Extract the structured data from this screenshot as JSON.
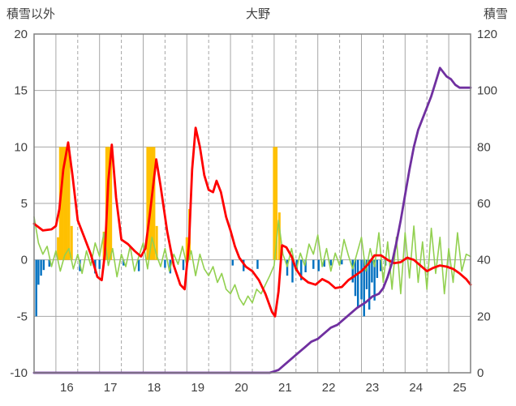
{
  "chart_data": {
    "type": "line",
    "title": "大野",
    "x_axis": {
      "min": 15.5,
      "max": 25.5,
      "tick_labels": [
        "16",
        "17",
        "18",
        "19",
        "20",
        "21",
        "22",
        "23",
        "24",
        "25"
      ],
      "tick_values": [
        16,
        17,
        18,
        19,
        20,
        21,
        22,
        23,
        24,
        25
      ],
      "solid_gridlines": [
        16,
        17,
        18,
        19,
        20,
        21,
        22,
        23,
        24,
        25
      ],
      "dashed_gridlines": [
        16.5,
        17.5,
        18.5,
        19.5,
        20.5,
        21.5,
        22.5,
        23.5,
        24.5
      ]
    },
    "left_axis": {
      "label": "積雪以外",
      "min": -10,
      "max": 20,
      "ticks": [
        20,
        15,
        10,
        5,
        0,
        -5,
        -10
      ]
    },
    "right_axis": {
      "label": "積雪",
      "min": 0,
      "max": 120,
      "ticks": [
        120,
        100,
        80,
        60,
        40,
        20,
        0
      ]
    },
    "style": {
      "grid_color": "#A6A6A6",
      "border_color": "#808080",
      "tick_text_color": "#404040",
      "background": "#FFFFFF"
    },
    "series": [
      {
        "name": "yellow-bars",
        "type": "bar",
        "axis": "left",
        "color": "#FFC000",
        "bar_width_days": 0.055,
        "points": [
          [
            16.05,
            2
          ],
          [
            16.1,
            10
          ],
          [
            16.15,
            10
          ],
          [
            16.2,
            10
          ],
          [
            16.25,
            10
          ],
          [
            16.3,
            10
          ],
          [
            16.36,
            3
          ],
          [
            17.1,
            2.5
          ],
          [
            17.16,
            10
          ],
          [
            17.21,
            10
          ],
          [
            17.26,
            10
          ],
          [
            18.1,
            10
          ],
          [
            18.15,
            10
          ],
          [
            18.2,
            10
          ],
          [
            18.25,
            10
          ],
          [
            18.31,
            3
          ],
          [
            19.0,
            2
          ],
          [
            19.06,
            4.5
          ],
          [
            21.0,
            10
          ],
          [
            21.05,
            10
          ],
          [
            21.12,
            4.2
          ]
        ]
      },
      {
        "name": "blue-bars",
        "type": "bar",
        "axis": "left",
        "color": "#0070C0",
        "bar_width_days": 0.045,
        "points": [
          [
            15.55,
            -5
          ],
          [
            15.6,
            -2.2
          ],
          [
            15.66,
            -1.4
          ],
          [
            15.72,
            -0.9
          ],
          [
            15.85,
            -0.6
          ],
          [
            16.55,
            -1.0
          ],
          [
            16.9,
            -1.2
          ],
          [
            17.0,
            -0.8
          ],
          [
            17.55,
            -0.5
          ],
          [
            17.9,
            -1.0
          ],
          [
            18.5,
            -0.7
          ],
          [
            18.62,
            -1.2
          ],
          [
            18.92,
            -0.9
          ],
          [
            20.05,
            -0.5
          ],
          [
            20.3,
            -1.0
          ],
          [
            20.62,
            -0.8
          ],
          [
            21.3,
            -1.4
          ],
          [
            21.42,
            -2.0
          ],
          [
            21.52,
            -1.0
          ],
          [
            21.62,
            -1.8
          ],
          [
            21.72,
            -1.1
          ],
          [
            21.9,
            -0.8
          ],
          [
            22.02,
            -1.0
          ],
          [
            22.15,
            -0.6
          ],
          [
            22.3,
            -0.5
          ],
          [
            22.55,
            -0.4
          ],
          [
            22.8,
            -2.0
          ],
          [
            22.86,
            -3.2
          ],
          [
            22.92,
            -4.2
          ],
          [
            23.0,
            -3.5
          ],
          [
            23.06,
            -5.0
          ],
          [
            23.12,
            -2.6
          ],
          [
            23.18,
            -4.4
          ],
          [
            23.24,
            -2.0
          ],
          [
            23.3,
            -3.6
          ],
          [
            23.36,
            -1.6
          ],
          [
            23.44,
            -1.0
          ],
          [
            23.55,
            -0.5
          ]
        ]
      },
      {
        "name": "green-line",
        "type": "line",
        "axis": "left",
        "color": "#92D050",
        "stroke_width": 1.6,
        "x_start": 15.5,
        "x_step": 0.1,
        "values": [
          3.8,
          1.5,
          0.5,
          1.2,
          -0.6,
          0.8,
          -1.0,
          0.4,
          1.0,
          -0.8,
          0.5,
          -1.2,
          0.8,
          -0.5,
          1.5,
          0.3,
          2.4,
          -0.5,
          1.0,
          -1.5,
          0.5,
          -0.6,
          1.2,
          -1.0,
          0.3,
          1.5,
          -0.8,
          2.0,
          0.5,
          -0.6,
          1.0,
          -1.0,
          0.5,
          -0.4,
          1.2,
          -0.5,
          0.8,
          -1.4,
          0.5,
          -0.8,
          -1.4,
          -0.6,
          -2.0,
          -1.2,
          -2.6,
          -3.0,
          -2.2,
          -3.4,
          -4.0,
          -3.2,
          -3.8,
          -2.6,
          -3.0,
          -2.2,
          -1.4,
          -0.5,
          3.5,
          0.5,
          -0.6,
          1.0,
          -1.0,
          0.6,
          -0.5,
          1.4,
          0.5,
          2.2,
          -0.6,
          1.0,
          -1.0,
          0.6,
          -0.5,
          1.8,
          0.4,
          -0.8,
          0.6,
          2.0,
          -1.0,
          1.0,
          -0.6,
          2.4,
          -2.0,
          1.6,
          -2.6,
          2.0,
          -3.0,
          2.4,
          -1.6,
          3.0,
          -2.0,
          1.6,
          -2.6,
          2.8,
          -1.2,
          2.0,
          -3.0,
          1.0,
          -2.0,
          2.4,
          -1.0,
          0.5,
          0.3
        ]
      },
      {
        "name": "red-line",
        "type": "line",
        "axis": "left",
        "color": "#FF0000",
        "stroke_width": 2.8,
        "points": [
          [
            15.5,
            3.2
          ],
          [
            15.7,
            2.6
          ],
          [
            15.9,
            2.7
          ],
          [
            16.0,
            3.0
          ],
          [
            16.08,
            4.5
          ],
          [
            16.17,
            8.0
          ],
          [
            16.28,
            10.4
          ],
          [
            16.38,
            7.5
          ],
          [
            16.5,
            3.5
          ],
          [
            16.65,
            2.0
          ],
          [
            16.8,
            0.5
          ],
          [
            16.95,
            -1.5
          ],
          [
            17.05,
            -1.8
          ],
          [
            17.12,
            0.5
          ],
          [
            17.2,
            7.0
          ],
          [
            17.28,
            10.2
          ],
          [
            17.38,
            5.5
          ],
          [
            17.5,
            1.8
          ],
          [
            17.65,
            1.4
          ],
          [
            17.8,
            0.8
          ],
          [
            17.95,
            0.3
          ],
          [
            18.05,
            1.0
          ],
          [
            18.15,
            4.0
          ],
          [
            18.3,
            8.9
          ],
          [
            18.4,
            6.5
          ],
          [
            18.55,
            2.5
          ],
          [
            18.7,
            -0.5
          ],
          [
            18.85,
            -2.2
          ],
          [
            18.95,
            -2.6
          ],
          [
            19.05,
            1.5
          ],
          [
            19.12,
            8.0
          ],
          [
            19.2,
            11.7
          ],
          [
            19.3,
            10.0
          ],
          [
            19.4,
            7.5
          ],
          [
            19.5,
            6.2
          ],
          [
            19.6,
            6.0
          ],
          [
            19.68,
            7.0
          ],
          [
            19.78,
            6.0
          ],
          [
            19.9,
            3.8
          ],
          [
            20.0,
            2.6
          ],
          [
            20.1,
            1.2
          ],
          [
            20.2,
            0.2
          ],
          [
            20.35,
            -0.6
          ],
          [
            20.5,
            -1.0
          ],
          [
            20.65,
            -1.8
          ],
          [
            20.8,
            -3.0
          ],
          [
            20.95,
            -4.6
          ],
          [
            21.02,
            -5.0
          ],
          [
            21.1,
            -2.8
          ],
          [
            21.18,
            1.3
          ],
          [
            21.28,
            1.1
          ],
          [
            21.4,
            0.3
          ],
          [
            21.5,
            -0.8
          ],
          [
            21.62,
            -1.5
          ],
          [
            21.78,
            -2.0
          ],
          [
            21.95,
            -2.2
          ],
          [
            22.1,
            -1.7
          ],
          [
            22.25,
            -2.0
          ],
          [
            22.4,
            -2.5
          ],
          [
            22.55,
            -2.4
          ],
          [
            22.7,
            -1.8
          ],
          [
            22.85,
            -1.4
          ],
          [
            23.0,
            -1.0
          ],
          [
            23.15,
            -0.4
          ],
          [
            23.3,
            0.4
          ],
          [
            23.45,
            0.4
          ],
          [
            23.6,
            0.0
          ],
          [
            23.75,
            -0.3
          ],
          [
            23.9,
            -0.2
          ],
          [
            24.05,
            0.2
          ],
          [
            24.2,
            0.0
          ],
          [
            24.35,
            -0.5
          ],
          [
            24.5,
            -1.0
          ],
          [
            24.65,
            -0.7
          ],
          [
            24.8,
            -0.5
          ],
          [
            24.95,
            -0.6
          ],
          [
            25.1,
            -0.8
          ],
          [
            25.25,
            -1.2
          ],
          [
            25.4,
            -1.7
          ],
          [
            25.5,
            -2.2
          ]
        ]
      },
      {
        "name": "purple-line",
        "type": "line",
        "axis": "right",
        "color": "#7030A0",
        "stroke_width": 2.8,
        "points": [
          [
            15.5,
            0
          ],
          [
            20.9,
            0
          ],
          [
            21.0,
            0.5
          ],
          [
            21.1,
            1
          ],
          [
            21.25,
            3
          ],
          [
            21.4,
            5
          ],
          [
            21.55,
            7
          ],
          [
            21.7,
            9
          ],
          [
            21.85,
            11
          ],
          [
            22.0,
            12
          ],
          [
            22.15,
            14
          ],
          [
            22.3,
            16
          ],
          [
            22.45,
            17
          ],
          [
            22.6,
            19
          ],
          [
            22.75,
            21
          ],
          [
            22.9,
            23
          ],
          [
            23.0,
            24
          ],
          [
            23.1,
            25
          ],
          [
            23.25,
            27
          ],
          [
            23.4,
            28
          ],
          [
            23.5,
            30
          ],
          [
            23.6,
            34
          ],
          [
            23.7,
            39
          ],
          [
            23.8,
            46
          ],
          [
            23.9,
            54
          ],
          [
            24.0,
            63
          ],
          [
            24.1,
            72
          ],
          [
            24.2,
            80
          ],
          [
            24.3,
            86
          ],
          [
            24.4,
            90
          ],
          [
            24.5,
            94
          ],
          [
            24.6,
            98
          ],
          [
            24.7,
            103
          ],
          [
            24.8,
            108
          ],
          [
            24.85,
            107
          ],
          [
            24.95,
            105
          ],
          [
            25.05,
            104
          ],
          [
            25.15,
            102
          ],
          [
            25.25,
            101
          ],
          [
            25.4,
            101
          ],
          [
            25.5,
            101
          ]
        ]
      }
    ]
  }
}
